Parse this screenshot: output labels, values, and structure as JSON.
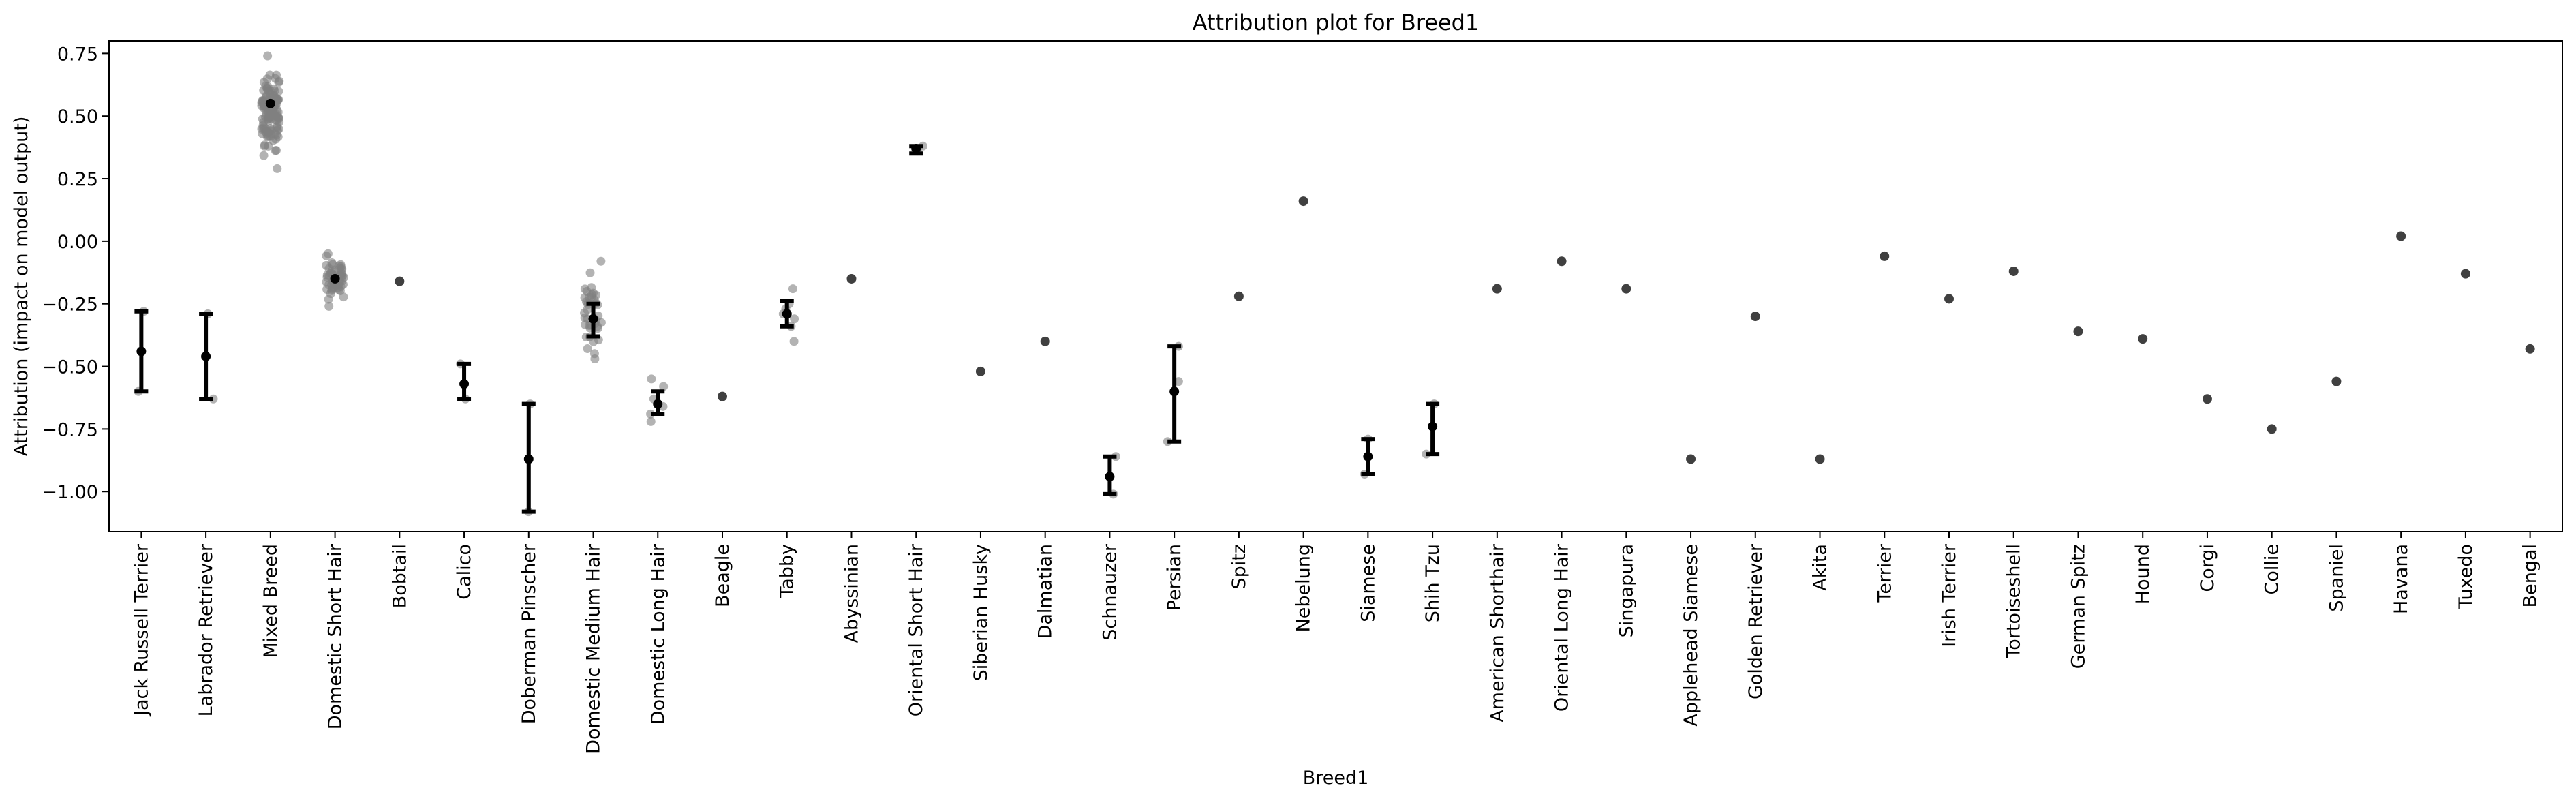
{
  "chart_data": {
    "type": "scatter",
    "title": "Attribution plot for Breed1",
    "xlabel": "Breed1",
    "ylabel": "Attribution (impact on model output)",
    "ylim": [
      -1.16,
      0.8
    ],
    "yticks": [
      0.75,
      0.5,
      0.25,
      0.0,
      -0.25,
      -0.5,
      -0.75,
      -1.0
    ],
    "ytick_labels": [
      "0.75",
      "0.50",
      "0.25",
      "0.00",
      "−0.25",
      "−0.50",
      "−0.75",
      "−1.00"
    ],
    "grid": false,
    "colors": {
      "point": "#808080",
      "mean": "#000000",
      "single": "#404040"
    },
    "categories": [
      "Jack Russell Terrier",
      "Labrador Retriever",
      "Mixed Breed",
      "Domestic Short Hair",
      "Bobtail",
      "Calico",
      "Doberman Pinscher",
      "Domestic Medium Hair",
      "Domestic Long Hair",
      "Beagle",
      "Tabby",
      "Abyssinian",
      "Oriental Short Hair",
      "Siberian Husky",
      "Dalmatian",
      "Schnauzer",
      "Persian",
      "Spitz",
      "Nebelung",
      "Siamese",
      "Shih Tzu",
      "American Shorthair",
      "Oriental Long Hair",
      "Singapura",
      "Applehead Siamese",
      "Golden Retriever",
      "Akita",
      "Terrier",
      "Irish Terrier",
      "Tortoiseshell",
      "German Spitz",
      "Hound",
      "Corgi",
      "Collie",
      "Spaniel",
      "Havana",
      "Tuxedo",
      "Bengal"
    ],
    "series": [
      {
        "category": "Jack Russell Terrier",
        "mean": -0.44,
        "err_low": -0.6,
        "err_high": -0.28,
        "points": [
          -0.28,
          -0.6
        ]
      },
      {
        "category": "Labrador Retriever",
        "mean": -0.46,
        "err_low": -0.63,
        "err_high": -0.29,
        "points": [
          -0.29,
          -0.63
        ]
      },
      {
        "category": "Mixed Breed",
        "mean": 0.55,
        "spread": [
          0.29,
          0.74
        ],
        "count": 120
      },
      {
        "category": "Domestic Short Hair",
        "mean": -0.15,
        "spread": [
          -0.26,
          -0.05
        ],
        "count": 60
      },
      {
        "category": "Bobtail",
        "mean": -0.16,
        "points": [
          -0.16
        ]
      },
      {
        "category": "Calico",
        "mean": -0.57,
        "err_low": -0.63,
        "err_high": -0.49,
        "points": [
          -0.49,
          -0.63
        ]
      },
      {
        "category": "Doberman Pinscher",
        "mean": -0.87,
        "err_low": -1.08,
        "err_high": -0.65,
        "points": [
          -0.65,
          -1.08
        ]
      },
      {
        "category": "Domestic Medium Hair",
        "mean": -0.31,
        "err_low": -0.38,
        "err_high": -0.25,
        "spread": [
          -0.47,
          -0.08
        ],
        "count": 40
      },
      {
        "category": "Domestic Long Hair",
        "mean": -0.65,
        "err_low": -0.69,
        "err_high": -0.6,
        "points": [
          -0.55,
          -0.58,
          -0.63,
          -0.66,
          -0.69,
          -0.72
        ]
      },
      {
        "category": "Beagle",
        "mean": -0.62,
        "points": [
          -0.62
        ]
      },
      {
        "category": "Tabby",
        "mean": -0.29,
        "err_low": -0.34,
        "err_high": -0.24,
        "points": [
          -0.19,
          -0.25,
          -0.27,
          -0.29,
          -0.31,
          -0.34,
          -0.4
        ]
      },
      {
        "category": "Abyssinian",
        "mean": -0.15,
        "points": [
          -0.15
        ]
      },
      {
        "category": "Oriental Short Hair",
        "mean": 0.37,
        "err_low": 0.35,
        "err_high": 0.38,
        "points": [
          0.38,
          0.36
        ]
      },
      {
        "category": "Siberian Husky",
        "mean": -0.52,
        "points": [
          -0.52
        ]
      },
      {
        "category": "Dalmatian",
        "mean": -0.4,
        "points": [
          -0.4
        ]
      },
      {
        "category": "Schnauzer",
        "mean": -0.94,
        "err_low": -1.01,
        "err_high": -0.86,
        "points": [
          -0.86,
          -1.01
        ]
      },
      {
        "category": "Persian",
        "mean": -0.6,
        "err_low": -0.8,
        "err_high": -0.42,
        "points": [
          -0.56,
          -0.42,
          -0.8
        ]
      },
      {
        "category": "Spitz",
        "mean": -0.22,
        "points": [
          -0.22
        ]
      },
      {
        "category": "Nebelung",
        "mean": 0.16,
        "points": [
          0.16
        ]
      },
      {
        "category": "Siamese",
        "mean": -0.86,
        "err_low": -0.93,
        "err_high": -0.79,
        "points": [
          -0.79,
          -0.93
        ]
      },
      {
        "category": "Shih Tzu",
        "mean": -0.74,
        "err_low": -0.85,
        "err_high": -0.65,
        "points": [
          -0.65,
          -0.85
        ]
      },
      {
        "category": "American Shorthair",
        "mean": -0.19,
        "points": [
          -0.19
        ]
      },
      {
        "category": "Oriental Long Hair",
        "mean": -0.08,
        "points": [
          -0.08
        ]
      },
      {
        "category": "Singapura",
        "mean": -0.19,
        "points": [
          -0.19
        ]
      },
      {
        "category": "Applehead Siamese",
        "mean": -0.87,
        "points": [
          -0.87
        ]
      },
      {
        "category": "Golden Retriever",
        "mean": -0.3,
        "points": [
          -0.3
        ]
      },
      {
        "category": "Akita",
        "mean": -0.87,
        "points": [
          -0.87
        ]
      },
      {
        "category": "Terrier",
        "mean": -0.06,
        "points": [
          -0.06
        ]
      },
      {
        "category": "Irish Terrier",
        "mean": -0.23,
        "points": [
          -0.23
        ]
      },
      {
        "category": "Tortoiseshell",
        "mean": -0.12,
        "points": [
          -0.12
        ]
      },
      {
        "category": "German Spitz",
        "mean": -0.36,
        "points": [
          -0.36
        ]
      },
      {
        "category": "Hound",
        "mean": -0.39,
        "points": [
          -0.39
        ]
      },
      {
        "category": "Corgi",
        "mean": -0.63,
        "points": [
          -0.63
        ]
      },
      {
        "category": "Collie",
        "mean": -0.75,
        "points": [
          -0.75
        ]
      },
      {
        "category": "Spaniel",
        "mean": -0.56,
        "points": [
          -0.56
        ]
      },
      {
        "category": "Havana",
        "mean": 0.02,
        "points": [
          0.02
        ]
      },
      {
        "category": "Tuxedo",
        "mean": -0.13,
        "points": [
          -0.13
        ]
      },
      {
        "category": "Bengal",
        "mean": -0.43,
        "points": [
          -0.43
        ]
      }
    ]
  }
}
